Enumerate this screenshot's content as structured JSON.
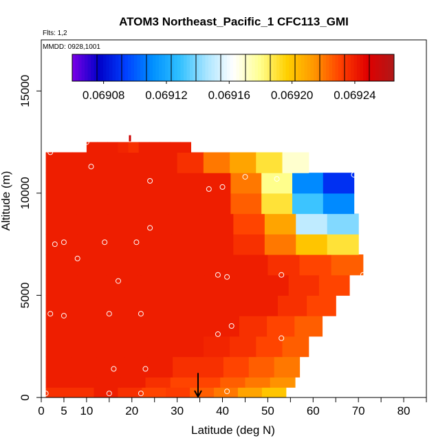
{
  "chart_data": {
    "type": "heatmap",
    "title": "ATOM3 Northeast_Pacific_1 CFC113_GMI",
    "annotations": {
      "flights": "Flts: 1,2",
      "dates": "MMDD: 0928,1001"
    },
    "xlabel": "Latitude (deg N)",
    "ylabel": "Altitude (m)",
    "xlim": [
      0,
      85
    ],
    "ylim": [
      0,
      17500
    ],
    "x_ticks": [
      0,
      5,
      10,
      20,
      30,
      40,
      50,
      60,
      70,
      80
    ],
    "x_tick_labels": [
      "0",
      "5",
      "10",
      "20",
      "30",
      "40",
      "50",
      "60",
      "70",
      "80"
    ],
    "y_ticks": [
      0,
      5000,
      10000,
      15000
    ],
    "y_tick_labels": [
      "0",
      "5000",
      "10000",
      "15000"
    ],
    "colorbar": {
      "min": 0.06906,
      "max": 0.069265,
      "ticks": [
        0.06908,
        0.06912,
        0.06916,
        0.0692,
        0.06924
      ],
      "tick_labels": [
        "0.06908",
        "0.06912",
        "0.06916",
        "0.06920",
        "0.06924"
      ],
      "colors": [
        "#7a00e6",
        "#0000c8",
        "#0040ff",
        "#0090ff",
        "#30c0ff",
        "#a8e4ff",
        "#ffffff",
        "#ffff90",
        "#ffd000",
        "#ff9800",
        "#ff4000",
        "#e00000",
        "#b01818"
      ]
    },
    "field_rows": [
      {
        "y0": 0,
        "y1": 500,
        "extent": [
          [
            1,
            54
          ]
        ],
        "values": [
          0.069235,
          0.069235,
          0.06924,
          0.069235,
          0.06923,
          0.069232,
          0.069225,
          0.06922,
          0.06921,
          0.0692
        ]
      },
      {
        "y0": 500,
        "y1": 1000,
        "extent": [
          [
            1,
            56
          ]
        ],
        "values": [
          0.06924,
          0.06924,
          0.06924,
          0.06924,
          0.069235,
          0.06923,
          0.06923,
          0.069225,
          0.06922,
          0.069215
        ]
      },
      {
        "y0": 1000,
        "y1": 2000,
        "extent": [
          [
            1,
            57
          ]
        ],
        "values": [
          0.06924,
          0.06924,
          0.06924,
          0.06924,
          0.06924,
          0.069235,
          0.069235,
          0.06923,
          0.069225,
          0.06922
        ]
      },
      {
        "y0": 2000,
        "y1": 3000,
        "extent": [
          [
            1,
            59
          ]
        ],
        "values": [
          0.06924,
          0.06924,
          0.06924,
          0.06924,
          0.06924,
          0.06924,
          0.069238,
          0.069235,
          0.06923,
          0.069225
        ]
      },
      {
        "y0": 3000,
        "y1": 4000,
        "extent": [
          [
            1,
            62
          ]
        ],
        "values": [
          0.06924,
          0.06924,
          0.06924,
          0.06924,
          0.06924,
          0.06924,
          0.06924,
          0.069235,
          0.06923,
          0.069225
        ]
      },
      {
        "y0": 4000,
        "y1": 5000,
        "extent": [
          [
            1,
            65
          ]
        ],
        "values": [
          0.06924,
          0.06924,
          0.06924,
          0.06924,
          0.06924,
          0.06924,
          0.06924,
          0.06924,
          0.069235,
          0.06923
        ]
      },
      {
        "y0": 5000,
        "y1": 6000,
        "extent": [
          [
            1,
            68
          ]
        ],
        "values": [
          0.06924,
          0.06924,
          0.06924,
          0.06924,
          0.06924,
          0.06924,
          0.06924,
          0.06924,
          0.069235,
          0.06923
        ]
      },
      {
        "y0": 6000,
        "y1": 7000,
        "extent": [
          [
            1,
            71
          ]
        ],
        "values": [
          0.06924,
          0.06924,
          0.06924,
          0.06924,
          0.06924,
          0.06924,
          0.06924,
          0.069235,
          0.06923,
          0.069225
        ]
      },
      {
        "y0": 7000,
        "y1": 8000,
        "extent": [
          [
            1,
            70
          ]
        ],
        "values": [
          0.06924,
          0.06924,
          0.06924,
          0.06924,
          0.06924,
          0.06924,
          0.069235,
          0.06922,
          0.0692,
          0.06919
        ]
      },
      {
        "y0": 8000,
        "y1": 9000,
        "extent": [
          [
            1,
            70
          ]
        ],
        "values": [
          0.06924,
          0.06924,
          0.06924,
          0.06924,
          0.06924,
          0.06924,
          0.06923,
          0.06921,
          0.06915,
          0.06914
        ]
      },
      {
        "y0": 9000,
        "y1": 10000,
        "extent": [
          [
            1,
            69
          ]
        ],
        "values": [
          0.06924,
          0.06924,
          0.06924,
          0.06924,
          0.06924,
          0.06924,
          0.069225,
          0.06919,
          0.06913,
          0.06911
        ]
      },
      {
        "y0": 10000,
        "y1": 11000,
        "extent": [
          [
            1,
            69
          ]
        ],
        "values": [
          0.06924,
          0.06924,
          0.06924,
          0.06924,
          0.06924,
          0.06924,
          0.06922,
          0.06918,
          0.06911,
          0.06909
        ]
      },
      {
        "y0": 11000,
        "y1": 12000,
        "extent": [
          [
            1,
            59
          ]
        ],
        "values": [
          0.06924,
          0.06924,
          0.06924,
          0.06924,
          0.06924,
          0.069235,
          0.06922,
          0.06921,
          0.06919,
          0.06917
        ]
      },
      {
        "y0": 12000,
        "y1": 12500,
        "extent": [
          [
            10,
            33
          ]
        ],
        "values": [
          0.06924,
          0.06924,
          0.06924,
          0.069238,
          0.069235,
          0.06924,
          0.06924,
          0.06924,
          0.06924,
          0.06924
        ]
      }
    ],
    "sample_points": [
      {
        "x": 2,
        "y": 12000
      },
      {
        "x": 10,
        "y": 12500
      },
      {
        "x": 11,
        "y": 11300
      },
      {
        "x": 24,
        "y": 10600
      },
      {
        "x": 37,
        "y": 10200
      },
      {
        "x": 40,
        "y": 10300
      },
      {
        "x": 45,
        "y": 10800
      },
      {
        "x": 52,
        "y": 10700
      },
      {
        "x": 69,
        "y": 10900
      },
      {
        "x": 24,
        "y": 8300
      },
      {
        "x": 3,
        "y": 7500
      },
      {
        "x": 5,
        "y": 7600
      },
      {
        "x": 14,
        "y": 7600
      },
      {
        "x": 21,
        "y": 7600
      },
      {
        "x": 8,
        "y": 6800
      },
      {
        "x": 39,
        "y": 6000
      },
      {
        "x": 41,
        "y": 5900
      },
      {
        "x": 53,
        "y": 6000
      },
      {
        "x": 71,
        "y": 6000
      },
      {
        "x": 17,
        "y": 5700
      },
      {
        "x": 2,
        "y": 4100
      },
      {
        "x": 5,
        "y": 4000
      },
      {
        "x": 15,
        "y": 4100
      },
      {
        "x": 22,
        "y": 4100
      },
      {
        "x": 42,
        "y": 3500
      },
      {
        "x": 39,
        "y": 3100
      },
      {
        "x": 53,
        "y": 2900
      },
      {
        "x": 16,
        "y": 1400
      },
      {
        "x": 23,
        "y": 1400
      },
      {
        "x": 1,
        "y": 200
      },
      {
        "x": 15,
        "y": 200
      },
      {
        "x": 22,
        "y": 200
      },
      {
        "x": 41,
        "y": 300
      }
    ],
    "markers": [
      {
        "type": "arrow-down",
        "x": 34.6,
        "y": 700,
        "color": "#000000"
      },
      {
        "type": "tick",
        "x": 19.5,
        "y": 12700,
        "color": "#cc0000"
      }
    ]
  }
}
